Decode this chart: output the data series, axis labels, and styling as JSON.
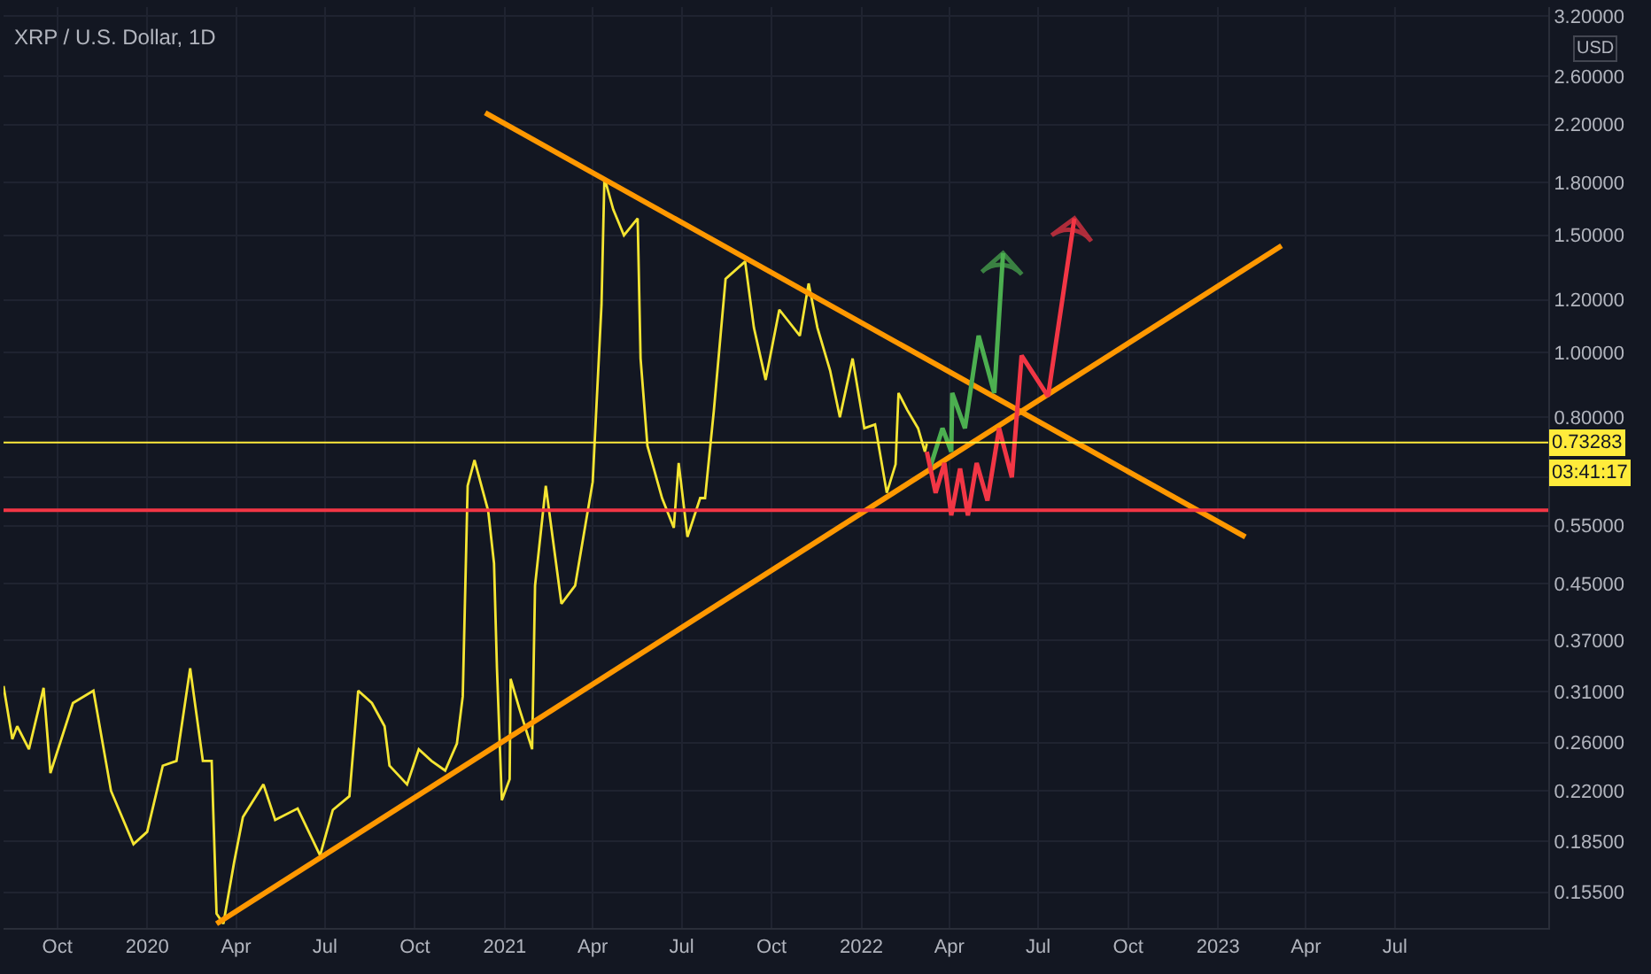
{
  "chart_data": {
    "type": "line",
    "title": "XRP / U.S. Dollar, 1D",
    "ylabel": "USD",
    "xlim": [
      "2019-08-07",
      "2023-12-05"
    ],
    "xticks": [
      {
        "value": "2019-10-01",
        "label": "Oct"
      },
      {
        "value": "2020-01-01",
        "label": "2020"
      },
      {
        "value": "2020-04-01",
        "label": "Apr"
      },
      {
        "value": "2020-07-01",
        "label": "Jul"
      },
      {
        "value": "2020-10-01",
        "label": "Oct"
      },
      {
        "value": "2021-01-01",
        "label": "2021"
      },
      {
        "value": "2021-04-01",
        "label": "Apr"
      },
      {
        "value": "2021-07-01",
        "label": "Jul"
      },
      {
        "value": "2021-10-01",
        "label": "Oct"
      },
      {
        "value": "2022-01-01",
        "label": "2022"
      },
      {
        "value": "2022-04-01",
        "label": "Apr"
      },
      {
        "value": "2022-07-01",
        "label": "Jul"
      },
      {
        "value": "2022-10-01",
        "label": "Oct"
      },
      {
        "value": "2023-01-01",
        "label": "2023"
      },
      {
        "value": "2023-04-01",
        "label": "Apr"
      },
      {
        "value": "2023-07-01",
        "label": "Jul"
      }
    ],
    "ylim": [
      0.137,
      3.3
    ],
    "log": "y",
    "yticks": [
      {
        "value": 0.155,
        "label": "0.15500"
      },
      {
        "value": 0.185,
        "label": "0.18500"
      },
      {
        "value": 0.22,
        "label": "0.22000"
      },
      {
        "value": 0.26,
        "label": "0.26000"
      },
      {
        "value": 0.31,
        "label": "0.31000"
      },
      {
        "value": 0.37,
        "label": "0.37000"
      },
      {
        "value": 0.45,
        "label": "0.45000"
      },
      {
        "value": 0.55,
        "label": "0.55000"
      },
      {
        "value": 0.65,
        "label": null
      },
      {
        "value": 0.8,
        "label": "0.80000"
      },
      {
        "value": 1,
        "label": "1.00000"
      },
      {
        "value": 1.2,
        "label": "1.20000"
      },
      {
        "value": 1.5,
        "label": "1.50000"
      },
      {
        "value": 1.8,
        "label": "1.80000"
      },
      {
        "value": 2.2,
        "label": "2.20000"
      },
      {
        "value": 2.6,
        "label": "2.60000"
      },
      {
        "value": 3.2,
        "label": "3.20000"
      }
    ],
    "grid": true,
    "marker": "none",
    "line_style": "solid",
    "series": [
      {
        "color": "#f5e532",
        "x": [
          "2019-08-07",
          "2019-08-16",
          "2019-08-21",
          "2019-09-02",
          "2019-09-17",
          "2019-09-24",
          "2019-10-17",
          "2019-11-07",
          "2019-11-25",
          "2019-12-18",
          "2020-01-01",
          "2020-01-17",
          "2020-01-31",
          "2020-02-14",
          "2020-02-27",
          "2020-03-07",
          "2020-03-12",
          "2020-03-19",
          "2020-03-30",
          "2020-04-08",
          "2020-04-29",
          "2020-05-11",
          "2020-06-03",
          "2020-06-26",
          "2020-07-09",
          "2020-07-26",
          "2020-08-04",
          "2020-08-18",
          "2020-08-31",
          "2020-09-05",
          "2020-09-23",
          "2020-10-05",
          "2020-10-18",
          "2020-11-01",
          "2020-11-13",
          "2020-11-19",
          "2020-11-24",
          "2020-12-01",
          "2020-12-15",
          "2020-12-21",
          "2020-12-24",
          "2020-12-29",
          "2021-01-06",
          "2021-01-07",
          "2021-01-16",
          "2021-01-29",
          "2021-02-01",
          "2021-02-12",
          "2021-02-28",
          "2021-03-14",
          "2021-04-01",
          "2021-04-10",
          "2021-04-13",
          "2021-04-22",
          "2021-05-03",
          "2021-05-17",
          "2021-05-20",
          "2021-05-27",
          "2021-06-11",
          "2021-06-23",
          "2021-06-28",
          "2021-07-07",
          "2021-07-20",
          "2021-07-25",
          "2021-08-03",
          "2021-08-15",
          "2021-09-04",
          "2021-09-13",
          "2021-09-25",
          "2021-10-09",
          "2021-10-30",
          "2021-11-08",
          "2021-11-17",
          "2021-11-30",
          "2021-12-10",
          "2021-12-23",
          "2022-01-04",
          "2022-01-15",
          "2022-01-27",
          "2022-02-05",
          "2022-02-08",
          "2022-02-17",
          "2022-02-28",
          "2022-03-07",
          "2022-03-09"
        ],
        "values": [
          0.316,
          0.263,
          0.275,
          0.254,
          0.314,
          0.234,
          0.298,
          0.311,
          0.22,
          0.183,
          0.191,
          0.24,
          0.244,
          0.336,
          0.244,
          0.244,
          0.144,
          0.139,
          0.172,
          0.201,
          0.225,
          0.199,
          0.207,
          0.176,
          0.206,
          0.216,
          0.311,
          0.298,
          0.275,
          0.24,
          0.225,
          0.254,
          0.244,
          0.236,
          0.259,
          0.305,
          0.631,
          0.69,
          0.579,
          0.483,
          0.336,
          0.213,
          0.229,
          0.324,
          0.292,
          0.254,
          0.447,
          0.631,
          0.42,
          0.447,
          0.64,
          1.18,
          1.83,
          1.64,
          1.5,
          1.59,
          0.98,
          0.725,
          0.605,
          0.546,
          0.683,
          0.529,
          0.605,
          0.605,
          0.819,
          1.29,
          1.37,
          1.09,
          0.91,
          1.16,
          1.06,
          1.27,
          1.09,
          0.94,
          0.8,
          0.98,
          0.77,
          0.78,
          0.616,
          0.68,
          0.87,
          0.82,
          0.77,
          0.71,
          0.73
        ]
      },
      {
        "type": "line",
        "color": "#ff9800",
        "x": [
          "2020-03-12",
          "2023-03-07"
        ],
        "values": [
          0.139,
          1.447
        ]
      },
      {
        "type": "line",
        "color": "#ff9800",
        "x": [
          "2020-12-12",
          "2023-01-29"
        ],
        "values": [
          2.29,
          0.529
        ]
      },
      {
        "type": "line",
        "color": "#4caf50",
        "x": [
          "2022-03-12",
          "2022-03-25",
          "2022-04-03",
          "2022-04-04",
          "2022-04-17",
          "2022-05-01",
          "2022-05-17",
          "2022-05-26"
        ],
        "values": [
          0.67,
          0.77,
          0.71,
          0.87,
          0.77,
          1.06,
          0.87,
          1.41
        ]
      },
      {
        "type": "line",
        "color": "#f23645",
        "x": [
          "2022-03-09",
          "2022-03-18",
          "2022-03-27",
          "2022-04-03",
          "2022-04-12",
          "2022-04-20",
          "2022-04-29",
          "2022-05-10",
          "2022-05-22",
          "2022-06-04",
          "2022-06-14",
          "2022-07-11",
          "2022-08-07"
        ],
        "values": [
          0.71,
          0.616,
          0.683,
          0.57,
          0.67,
          0.57,
          0.683,
          0.6,
          0.77,
          0.65,
          0.99,
          0.86,
          1.59
        ]
      }
    ],
    "ref_lines": [
      {
        "axis": "y",
        "value": 0.58,
        "color": "#f23645"
      },
      {
        "axis": "y",
        "value": 0.73283,
        "label": "0.73283",
        "color": "#ffeb3b"
      }
    ],
    "annotations": [
      "03:41:17"
    ]
  }
}
